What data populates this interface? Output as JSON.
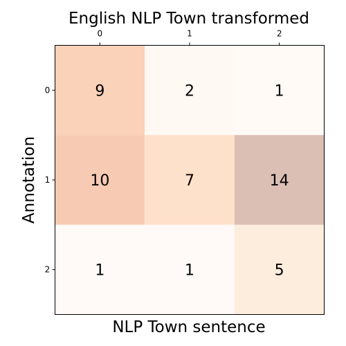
{
  "chart_data": {
    "type": "heatmap",
    "title": "English NLP Town transformed",
    "xlabel": "NLP Town sentence",
    "ylabel": "Annotation",
    "x_categories": [
      "0",
      "1",
      "2"
    ],
    "y_categories": [
      "0",
      "1",
      "2"
    ],
    "x_tick_position": "top",
    "values": [
      [
        9,
        2,
        1
      ],
      [
        10,
        7,
        14
      ],
      [
        1,
        1,
        5
      ]
    ],
    "cell_colors": [
      [
        "#fad1b9",
        "#fff8f3",
        "#fffaf6"
      ],
      [
        "#f7cbb3",
        "#fee1cb",
        "#dbbeb4"
      ],
      [
        "#fffaf7",
        "#fffaf7",
        "#fdeddd"
      ]
    ],
    "grid": false
  }
}
